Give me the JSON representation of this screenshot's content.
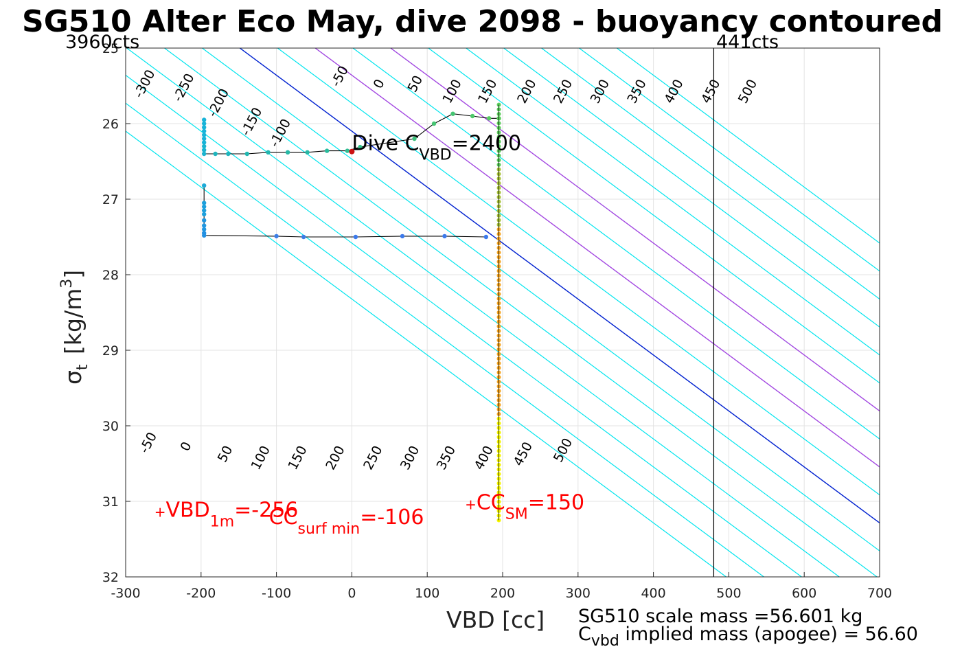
{
  "chart_data": {
    "type": "scatter",
    "title": "SG510 Alter Eco May, dive 2098 - buoyancy contoured",
    "xlabel": "VBD [cc]",
    "ylabel_symbol": "σ",
    "ylabel_sub": "t",
    "ylabel_units": "[kg/m",
    "ylabel_sup": "3",
    "ylabel_close": "]",
    "xlim": [
      -300,
      700
    ],
    "ylim": [
      25,
      32
    ],
    "y_reversed": true,
    "grid": true,
    "x_ticks": [
      -300,
      -200,
      -100,
      0,
      100,
      200,
      300,
      400,
      500,
      600,
      700
    ],
    "x_tick_labels": [
      "-300",
      "-200",
      "-100",
      "0",
      "100",
      "200",
      "300",
      "400",
      "500",
      "600",
      "700"
    ],
    "y_ticks": [
      25,
      26,
      27,
      28,
      29,
      30,
      31,
      32
    ],
    "y_tick_labels": [
      "25",
      "26",
      "27",
      "28",
      "29",
      "30",
      "31",
      "32"
    ],
    "corner_left": "3960cts",
    "corner_right": "441cts",
    "vertical_line_x": 480,
    "contour_slope_cc_per_sigma": 135,
    "contours": {
      "cyan_values": [
        -300,
        -250,
        -200,
        -150,
        -100,
        -50,
        0,
        50,
        100,
        150,
        200,
        250,
        300,
        350,
        400,
        450,
        500
      ],
      "purple_values": [
        100,
        200
      ],
      "blue_value": 0,
      "top_labels": [
        {
          "text": "-300",
          "x": -270,
          "y": 25.5
        },
        {
          "text": "-250",
          "x": -218,
          "y": 25.55
        },
        {
          "text": "-200",
          "x": -172,
          "y": 25.75
        },
        {
          "text": "-150",
          "x": -128,
          "y": 26.0
        },
        {
          "text": "-100",
          "x": -90,
          "y": 26.15
        },
        {
          "text": "-50",
          "x": -11,
          "y": 25.4
        },
        {
          "text": "0",
          "x": 41,
          "y": 25.5
        },
        {
          "text": "50",
          "x": 89,
          "y": 25.5
        },
        {
          "text": "100",
          "x": 138,
          "y": 25.6
        },
        {
          "text": "150",
          "x": 185,
          "y": 25.6
        },
        {
          "text": "200",
          "x": 237,
          "y": 25.6
        },
        {
          "text": "250",
          "x": 285,
          "y": 25.6
        },
        {
          "text": "300",
          "x": 334,
          "y": 25.6
        },
        {
          "text": "350",
          "x": 383,
          "y": 25.6
        },
        {
          "text": "400",
          "x": 432,
          "y": 25.6
        },
        {
          "text": "450",
          "x": 481,
          "y": 25.6
        },
        {
          "text": "500",
          "x": 530,
          "y": 25.6
        }
      ],
      "bottom_labels": [
        {
          "text": "-50",
          "x": -265,
          "y": 30.25
        },
        {
          "text": "0",
          "x": -215,
          "y": 30.3
        },
        {
          "text": "50",
          "x": -163,
          "y": 30.4
        },
        {
          "text": "100",
          "x": -116,
          "y": 30.45
        },
        {
          "text": "150",
          "x": -67,
          "y": 30.45
        },
        {
          "text": "200",
          "x": -17,
          "y": 30.45
        },
        {
          "text": "250",
          "x": 33,
          "y": 30.45
        },
        {
          "text": "300",
          "x": 82,
          "y": 30.45
        },
        {
          "text": "350",
          "x": 130,
          "y": 30.45
        },
        {
          "text": "400",
          "x": 180,
          "y": 30.45
        },
        {
          "text": "450",
          "x": 232,
          "y": 30.4
        },
        {
          "text": "500",
          "x": 285,
          "y": 30.35
        }
      ]
    },
    "series": [
      {
        "name": "trajectory-upper",
        "line_color": "#000000",
        "points": [
          {
            "x": -196,
            "y": 25.95,
            "c": "#19b3d8"
          },
          {
            "x": -196,
            "y": 26.0,
            "c": "#19b3d8"
          },
          {
            "x": -196,
            "y": 26.05,
            "c": "#19b3d8"
          },
          {
            "x": -196,
            "y": 26.1,
            "c": "#19b3d8"
          },
          {
            "x": -196,
            "y": 26.15,
            "c": "#19b3d8"
          },
          {
            "x": -196,
            "y": 26.2,
            "c": "#19b3d8"
          },
          {
            "x": -196,
            "y": 26.25,
            "c": "#19b3d8"
          },
          {
            "x": -196,
            "y": 26.3,
            "c": "#1bb4cf"
          },
          {
            "x": -196,
            "y": 26.35,
            "c": "#1bb4cf"
          },
          {
            "x": -196,
            "y": 26.4,
            "c": "#1bb4cf"
          },
          {
            "x": -181,
            "y": 26.4,
            "c": "#1fb5bd"
          },
          {
            "x": -164,
            "y": 26.4,
            "c": "#1fb5bd"
          },
          {
            "x": -139,
            "y": 26.4,
            "c": "#22b7b0"
          },
          {
            "x": -111,
            "y": 26.38,
            "c": "#22b7b0"
          },
          {
            "x": -85,
            "y": 26.38,
            "c": "#26b9a6"
          },
          {
            "x": -59,
            "y": 26.38,
            "c": "#26b9a6"
          },
          {
            "x": -33,
            "y": 26.36,
            "c": "#2abb9c"
          },
          {
            "x": -6,
            "y": 26.36,
            "c": "#2ebd92"
          },
          {
            "x": 11,
            "y": 26.31,
            "c": "#32bf88"
          },
          {
            "x": 83,
            "y": 26.2,
            "c": "#3dc27c"
          },
          {
            "x": 109,
            "y": 26.0,
            "c": "#45c572"
          },
          {
            "x": 134,
            "y": 25.87,
            "c": "#45c572"
          },
          {
            "x": 160,
            "y": 25.9,
            "c": "#4ec86a"
          },
          {
            "x": 182,
            "y": 25.93,
            "c": "#56cb62"
          },
          {
            "x": 195,
            "y": 25.93,
            "c": "#5acd5a"
          }
        ]
      },
      {
        "name": "trajectory-lower",
        "line_color": "#000000",
        "points": [
          {
            "x": -196,
            "y": 26.82,
            "c": "#1caad8"
          },
          {
            "x": -196,
            "y": 27.05,
            "c": "#1c9fdc"
          },
          {
            "x": -196,
            "y": 27.1,
            "c": "#1c9fdc"
          },
          {
            "x": -196,
            "y": 27.15,
            "c": "#1c9fdc"
          },
          {
            "x": -196,
            "y": 27.2,
            "c": "#1c9fdc"
          },
          {
            "x": -196,
            "y": 27.28,
            "c": "#1f96e0"
          },
          {
            "x": -196,
            "y": 27.35,
            "c": "#1f96e0"
          },
          {
            "x": -196,
            "y": 27.4,
            "c": "#1f96e0"
          },
          {
            "x": -196,
            "y": 27.45,
            "c": "#2290e2"
          },
          {
            "x": -196,
            "y": 27.48,
            "c": "#2290e2"
          },
          {
            "x": -100,
            "y": 27.49,
            "c": "#3a7ee8"
          },
          {
            "x": -64,
            "y": 27.5,
            "c": "#3a7ee8"
          },
          {
            "x": 5,
            "y": 27.5,
            "c": "#3c7aeb"
          },
          {
            "x": 67,
            "y": 27.49,
            "c": "#3c7aeb"
          },
          {
            "x": 123,
            "y": 27.49,
            "c": "#3c7aeb"
          },
          {
            "x": 178,
            "y": 27.5,
            "c": "#3c7aeb"
          }
        ]
      },
      {
        "name": "vertical-stack",
        "x": 195,
        "y_from": 25.75,
        "y_to": 31.25,
        "color_top": "#5acd5a",
        "color_mid": "#f5a623",
        "color_bottom": "#f5f500"
      }
    ],
    "marker_dive": {
      "x": 0,
      "y": 26.37,
      "color": "#cc1111"
    },
    "annotations": {
      "dive_cvbd": {
        "main": "Dive C",
        "sub": "VBD",
        "tail": "=2400",
        "x": 0,
        "y": 26.35
      },
      "vbd_1m": {
        "plus": "+",
        "main": "VBD",
        "sub": "1m",
        "tail": "=-256",
        "x": -262,
        "y": 31.15
      },
      "cc_surf_min": {
        "plus": "+",
        "main": "CC",
        "sub": "surf min",
        "tail": "=-106",
        "x": -110,
        "y": 31.3
      },
      "cc_sm": {
        "plus": "+",
        "main": "CC",
        "sub": "SM",
        "tail": "=150",
        "x": 150,
        "y": 31.05
      }
    }
  },
  "footer": {
    "line1": "SG510 scale mass =56.601 kg",
    "line2_main": "C",
    "line2_sub": "vbd",
    "line2_tail": " implied mass (apogee) = 56.60"
  }
}
